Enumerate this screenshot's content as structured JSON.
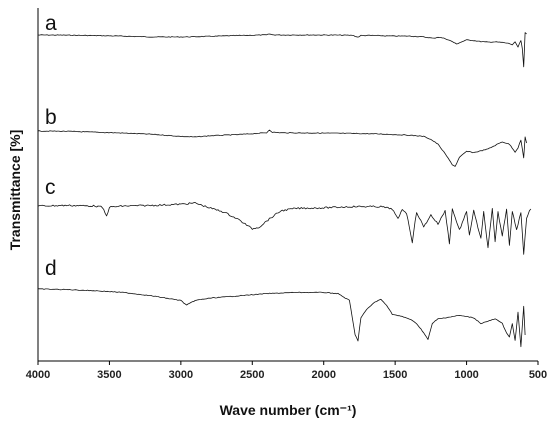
{
  "chart_data": {
    "type": "line",
    "xlabel": "Wave number (cm⁻¹)",
    "ylabel": "Transmittance [%]",
    "xlim": [
      4000,
      500
    ],
    "xdirection": "reversed",
    "y_scale": "arbitrary units, spectra vertically offset",
    "xticks": [
      "4000",
      "3500",
      "3000",
      "2500",
      "2000",
      "1500",
      "1000",
      "500"
    ],
    "grid": false,
    "series": [
      {
        "name": "a",
        "x": [
          4000,
          3800,
          3500,
          3200,
          3000,
          2800,
          2600,
          2400,
          2380,
          2360,
          2300,
          2000,
          1800,
          1760,
          1740,
          1650,
          1550,
          1400,
          1300,
          1230,
          1200,
          1150,
          1100,
          1070,
          1050,
          1000,
          950,
          900,
          850,
          800,
          750,
          700,
          680,
          660,
          640,
          620,
          610,
          600,
          590,
          580
        ],
        "y": [
          0,
          -0.3,
          -1.5,
          -3.5,
          -3.6,
          -2.5,
          -1.0,
          0.2,
          2.0,
          0.3,
          0.0,
          0.0,
          -0.5,
          -4.0,
          -1.0,
          -0.8,
          -1.8,
          -2.0,
          -3.5,
          -6.0,
          -3.8,
          -6.5,
          -12.0,
          -16.5,
          -14.0,
          -9.0,
          -10.0,
          -12.0,
          -13.0,
          -12.5,
          -13.5,
          -15.5,
          -18.0,
          -13.0,
          -22.0,
          -10.0,
          -25.0,
          -58.0,
          5.0,
          2.0
        ]
      },
      {
        "name": "b",
        "x": [
          4000,
          3800,
          3600,
          3400,
          3200,
          3000,
          2900,
          2800,
          2600,
          2400,
          2380,
          2360,
          2300,
          2000,
          1800,
          1600,
          1400,
          1300,
          1250,
          1200,
          1150,
          1100,
          1080,
          1050,
          1000,
          950,
          900,
          850,
          800,
          750,
          700,
          660,
          640,
          620,
          600,
          590,
          580
        ],
        "y": [
          0,
          -0.5,
          -2.0,
          -3.5,
          -5.5,
          -9.0,
          -10.0,
          -8.0,
          -6.0,
          -3.0,
          2.0,
          -2.0,
          -3.0,
          -3.5,
          -4.0,
          -5.0,
          -7.0,
          -9.0,
          -14.0,
          -22.0,
          -38.0,
          -56.0,
          -59.0,
          -44.0,
          -34.0,
          -36.0,
          -33.0,
          -30.0,
          -24.0,
          -18.0,
          -22.0,
          -35.0,
          -28.0,
          -15.0,
          -45.0,
          -10.0,
          -20.0
        ]
      },
      {
        "name": "c",
        "x": [
          4000,
          3800,
          3600,
          3550,
          3520,
          3500,
          3400,
          3200,
          3000,
          2900,
          2800,
          2700,
          2600,
          2550,
          2500,
          2450,
          2400,
          2300,
          2200,
          2000,
          1800,
          1600,
          1520,
          1480,
          1450,
          1420,
          1380,
          1350,
          1300,
          1250,
          1200,
          1150,
          1120,
          1100,
          1050,
          1000,
          980,
          950,
          900,
          880,
          850,
          820,
          800,
          780,
          750,
          720,
          700,
          680,
          650,
          620,
          600,
          580,
          560,
          550
        ],
        "y": [
          0,
          1.0,
          0.0,
          -2.0,
          -17.0,
          -2.0,
          0.0,
          1.0,
          3.0,
          5.0,
          -3.0,
          -10.0,
          -22.0,
          -30.0,
          -38.0,
          -35.0,
          -25.0,
          -8.0,
          -4.0,
          -3.0,
          -1.0,
          -1.0,
          -5.0,
          -22.0,
          -5.0,
          -12.0,
          -60.0,
          -10.0,
          -35.0,
          -15.0,
          -30.0,
          -8.0,
          -62.0,
          -5.0,
          -40.0,
          -10.0,
          -48.0,
          -8.0,
          -55.0,
          -10.0,
          -70.0,
          -5.0,
          -60.0,
          -10.0,
          -50.0,
          -5.0,
          -65.0,
          -8.0,
          -40.0,
          -10.0,
          -80.0,
          -20.0,
          -8.0,
          -5.0
        ]
      },
      {
        "name": "d",
        "x": [
          4000,
          3800,
          3600,
          3400,
          3200,
          3000,
          2960,
          2900,
          2800,
          2600,
          2400,
          2200,
          2000,
          1900,
          1820,
          1780,
          1760,
          1740,
          1700,
          1650,
          1600,
          1560,
          1520,
          1450,
          1400,
          1350,
          1300,
          1270,
          1240,
          1200,
          1150,
          1100,
          1050,
          1000,
          950,
          900,
          850,
          800,
          750,
          720,
          700,
          680,
          660,
          640,
          620,
          600,
          590
        ],
        "y": [
          0,
          -0.5,
          -1.5,
          -3.0,
          -6.0,
          -10.0,
          -14.0,
          -10.0,
          -8.0,
          -6.0,
          -4.0,
          -3.0,
          -3.0,
          -4.0,
          -10.0,
          -40.0,
          -45.0,
          -25.0,
          -18.0,
          -12.0,
          -9.0,
          -14.0,
          -22.0,
          -24.0,
          -26.0,
          -30.0,
          -38.0,
          -44.0,
          -30.0,
          -26.0,
          -25.0,
          -24.0,
          -23.0,
          -24.0,
          -25.0,
          -30.0,
          -28.0,
          -26.0,
          -30.0,
          -38.0,
          -42.0,
          -30.0,
          -45.0,
          -20.0,
          -50.0,
          -15.0,
          -40.0
        ]
      }
    ]
  },
  "labels": {
    "series_a": "a",
    "series_b": "b",
    "series_c": "c",
    "series_d": "d"
  }
}
